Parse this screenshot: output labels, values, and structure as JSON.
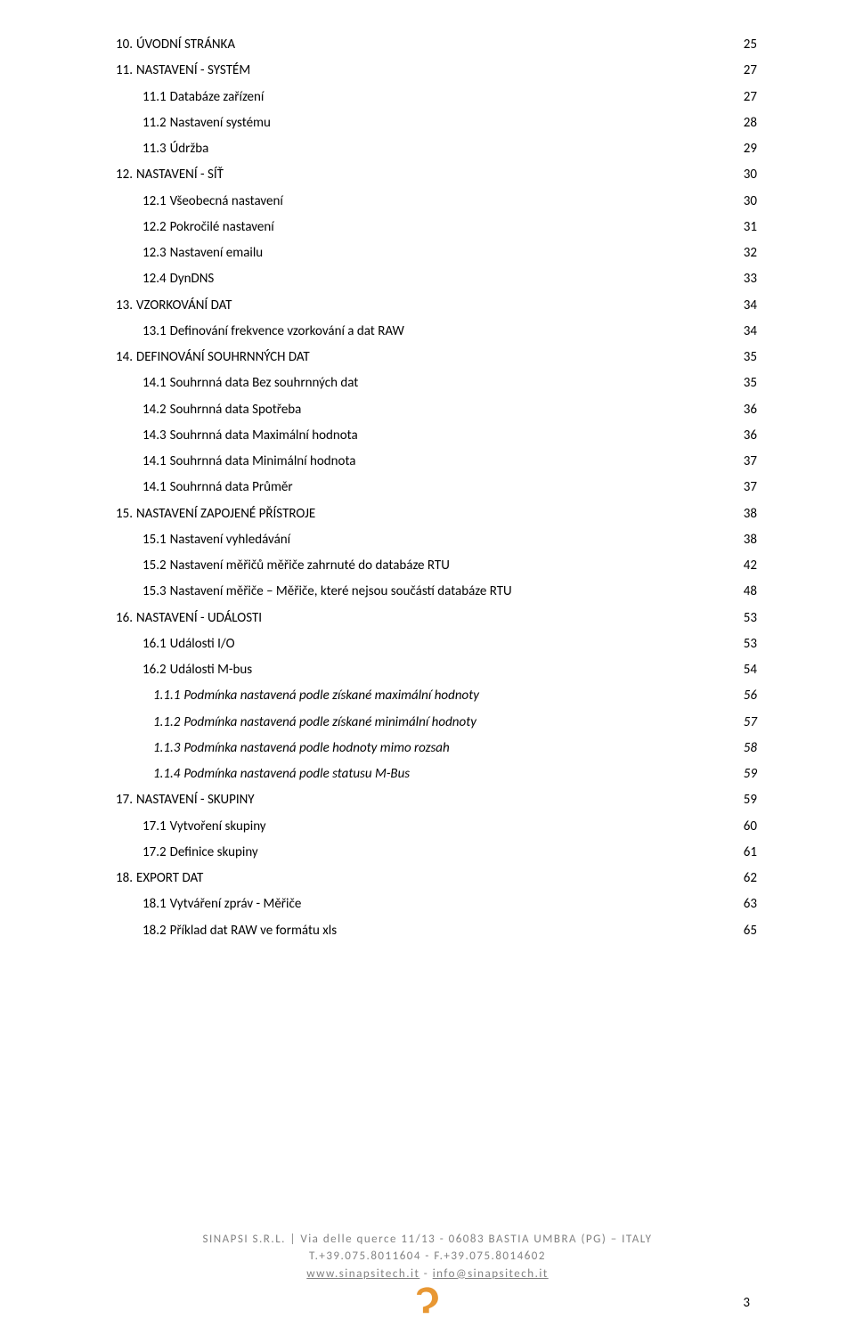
{
  "toc": [
    {
      "lvl": 0,
      "num": "10.",
      "label": "ÚVODNÍ STRÁNKA",
      "pg": "25"
    },
    {
      "lvl": 0,
      "num": "11.",
      "label": "NASTAVENÍ - SYSTÉM",
      "pg": "27"
    },
    {
      "lvl": 1,
      "num": "11.1",
      "label": "Databáze zařízení",
      "pg": "27"
    },
    {
      "lvl": 1,
      "num": "11.2",
      "label": "Nastavení systému",
      "pg": "28"
    },
    {
      "lvl": 1,
      "num": "11.3",
      "label": "Údržba",
      "pg": "29"
    },
    {
      "lvl": 0,
      "num": "12.",
      "label": "NASTAVENÍ - SÍŤ",
      "pg": "30"
    },
    {
      "lvl": 1,
      "num": "12.1",
      "label": "Všeobecná nastavení",
      "pg": "30"
    },
    {
      "lvl": 1,
      "num": "12.2",
      "label": "Pokročilé nastavení",
      "pg": "31"
    },
    {
      "lvl": 1,
      "num": "12.3",
      "label": "Nastavení emailu",
      "pg": "32"
    },
    {
      "lvl": 1,
      "num": "12.4",
      "label": "DynDNS",
      "pg": "33"
    },
    {
      "lvl": 0,
      "num": "13.",
      "label": "VZORKOVÁNÍ DAT",
      "pg": "34"
    },
    {
      "lvl": 1,
      "num": "13.1",
      "label": "Definování frekvence vzorkování a dat RAW",
      "pg": "34"
    },
    {
      "lvl": 0,
      "num": "14.",
      "label": "DEFINOVÁNÍ SOUHRNNÝCH DAT",
      "pg": "35"
    },
    {
      "lvl": 1,
      "num": "14.1",
      "label": "Souhrnná data Bez souhrnných dat",
      "pg": "35"
    },
    {
      "lvl": 1,
      "num": "14.2",
      "label": "Souhrnná data Spotřeba",
      "pg": "36"
    },
    {
      "lvl": 1,
      "num": "14.3",
      "label": "Souhrnná data Maximální hodnota",
      "pg": "36"
    },
    {
      "lvl": 1,
      "num": "14.1",
      "label": "Souhrnná data Minimální hodnota",
      "pg": "37"
    },
    {
      "lvl": 1,
      "num": "14.1",
      "label": "Souhrnná data Průměr",
      "pg": "37"
    },
    {
      "lvl": 0,
      "num": "15.",
      "label": "NASTAVENÍ ZAPOJENÉ PŘÍSTROJE",
      "pg": "38"
    },
    {
      "lvl": 1,
      "num": "15.1",
      "label": "Nastavení vyhledávání",
      "pg": "38"
    },
    {
      "lvl": 1,
      "num": "15.2",
      "label": "Nastavení měřičů měřiče zahrnuté do databáze RTU",
      "pg": "42"
    },
    {
      "lvl": 1,
      "num": "15.3",
      "label": "Nastavení měřiče – Měřiče, které nejsou součástí databáze RTU",
      "pg": "48"
    },
    {
      "lvl": 0,
      "num": "16.",
      "label": "NASTAVENÍ - UDÁLOSTI",
      "pg": "53"
    },
    {
      "lvl": 1,
      "num": "16.1",
      "label": "Události I/O",
      "pg": "53"
    },
    {
      "lvl": 1,
      "num": "16.2",
      "label": "Události M-bus",
      "pg": "54"
    },
    {
      "lvl": 2,
      "num": "1.1.1",
      "label": "Podmínka nastavená podle získané maximální hodnoty",
      "pg": "56"
    },
    {
      "lvl": 2,
      "num": "1.1.2",
      "label": "Podmínka nastavená podle získané minimální hodnoty",
      "pg": "57"
    },
    {
      "lvl": 2,
      "num": "1.1.3",
      "label": "Podmínka nastavená podle hodnoty mimo rozsah",
      "pg": "58"
    },
    {
      "lvl": 2,
      "num": "1.1.4",
      "label": "Podmínka nastavená podle statusu M-Bus",
      "pg": "59"
    },
    {
      "lvl": 0,
      "num": "17.",
      "label": "NASTAVENÍ - SKUPINY",
      "pg": "59"
    },
    {
      "lvl": 1,
      "num": "17.1",
      "label": "Vytvoření skupiny",
      "pg": "60"
    },
    {
      "lvl": 1,
      "num": "17.2",
      "label": "Definice skupiny",
      "pg": "61"
    },
    {
      "lvl": 0,
      "num": "18.",
      "label": "EXPORT DAT",
      "pg": "62"
    },
    {
      "lvl": 1,
      "num": "18.1",
      "label": "Vytváření zpráv  - Měřiče",
      "pg": "63"
    },
    {
      "lvl": 1,
      "num": "18.2",
      "label": "Příklad dat RAW ve formátu xls",
      "pg": "65"
    }
  ],
  "footer": {
    "line1": "SINAPSI S.R.L. | Via delle querce 11/13 - 06083 BASTIA UMBRA (PG) – ITALY",
    "line2": "T.+39.075.8011604 - F.+39.075.8014602",
    "link1_text": "www.sinapsitech.it",
    "sep": " - ",
    "link2_text": "info@sinapsitech.it"
  },
  "page_number": "3",
  "logo_color": "#e89733",
  "text_color": "#000000",
  "footer_color": "#808080"
}
